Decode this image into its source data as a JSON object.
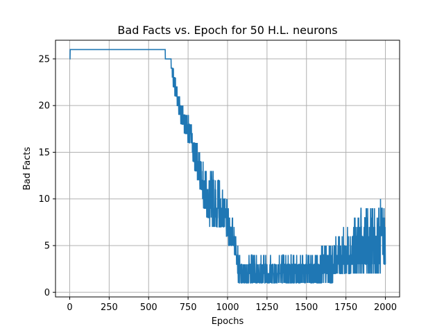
{
  "colors": {
    "line": "#1f77b4",
    "grid": "#b0b0b0",
    "axes": "#000000"
  },
  "chart_data": {
    "type": "line",
    "title": "Bad Facts vs. Epoch for 50 H.L. neurons",
    "xlabel": "Epochs",
    "ylabel": "Bad Facts",
    "xlim": [
      -90,
      2090
    ],
    "ylim": [
      -0.5,
      27.0
    ],
    "xticks": [
      0,
      250,
      500,
      750,
      1000,
      1250,
      1500,
      1750,
      2000
    ],
    "yticks": [
      0,
      5,
      10,
      15,
      20,
      25
    ],
    "grid": true,
    "legend": "none",
    "series": [
      {
        "band_points": [
          [
            0,
            25,
            25
          ],
          [
            5,
            26,
            26
          ],
          [
            600,
            26,
            26
          ],
          [
            610,
            25,
            25
          ],
          [
            640,
            25,
            25
          ],
          [
            650,
            23,
            24
          ],
          [
            670,
            21,
            23
          ],
          [
            690,
            19,
            22
          ],
          [
            710,
            18,
            21
          ],
          [
            730,
            17,
            20
          ],
          [
            750,
            16,
            19
          ],
          [
            770,
            16,
            18
          ],
          [
            790,
            13,
            17
          ],
          [
            810,
            12,
            16
          ],
          [
            830,
            11,
            15
          ],
          [
            850,
            9,
            14
          ],
          [
            870,
            8,
            13
          ],
          [
            890,
            7,
            13
          ],
          [
            910,
            7,
            13
          ],
          [
            930,
            7,
            13
          ],
          [
            950,
            7,
            12
          ],
          [
            970,
            7,
            11
          ],
          [
            990,
            6,
            10
          ],
          [
            1010,
            5,
            9
          ],
          [
            1030,
            5,
            8
          ],
          [
            1050,
            4,
            7
          ],
          [
            1060,
            3,
            7
          ],
          [
            1070,
            1,
            4
          ],
          [
            1100,
            1,
            3
          ],
          [
            1150,
            1,
            4
          ],
          [
            1200,
            1,
            4
          ],
          [
            1250,
            1,
            4
          ],
          [
            1300,
            1,
            4
          ],
          [
            1350,
            1,
            4
          ],
          [
            1400,
            1,
            4
          ],
          [
            1450,
            1,
            4
          ],
          [
            1500,
            1,
            4
          ],
          [
            1550,
            1,
            4
          ],
          [
            1600,
            1,
            5
          ],
          [
            1650,
            1,
            5
          ],
          [
            1700,
            2,
            6
          ],
          [
            1750,
            2,
            7
          ],
          [
            1800,
            2,
            8
          ],
          [
            1850,
            2,
            9
          ],
          [
            1900,
            2,
            9
          ],
          [
            1950,
            2,
            10
          ],
          [
            2000,
            3,
            10
          ]
        ]
      }
    ]
  }
}
